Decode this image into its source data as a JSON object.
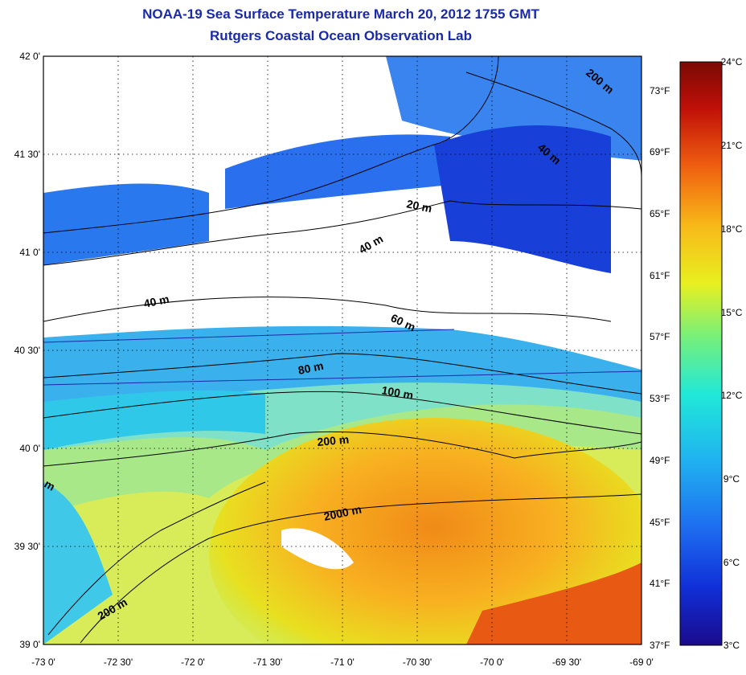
{
  "title_line1": "NOAA-19 Sea Surface Temperature March 20, 2012 1755 GMT",
  "title_line2": "Rutgers Coastal Ocean Observation Lab",
  "map": {
    "lon_range": [
      -73,
      -69
    ],
    "lat_range": [
      39,
      42
    ],
    "lat_ticks": [
      "42 0'",
      "41 30'",
      "41 0'",
      "40 30'",
      "40 0'",
      "39 30'",
      "39 0'"
    ],
    "lon_ticks": [
      "-73 0'",
      "-72 30'",
      "-72 0'",
      "-71 30'",
      "-71 0'",
      "-70 30'",
      "-70 0'",
      "-69 30'",
      "-69 0'"
    ],
    "fahrenheit_ticks": [
      "73°F",
      "69°F",
      "65°F",
      "61°F",
      "57°F",
      "53°F",
      "49°F",
      "45°F",
      "41°F",
      "37°F"
    ],
    "grid": true
  },
  "contours": [
    {
      "label": "20 m"
    },
    {
      "label": "40 m"
    },
    {
      "label": "40 m"
    },
    {
      "label": "40 m"
    },
    {
      "label": "60 m"
    },
    {
      "label": "80 m"
    },
    {
      "label": "100 m"
    },
    {
      "label": "200 m"
    },
    {
      "label": "200 m"
    },
    {
      "label": "200 m"
    },
    {
      "label": "2000 m"
    },
    {
      "label": "m"
    }
  ],
  "colorbar": {
    "celsius_ticks": [
      "24°C",
      "21°C",
      "18°C",
      "15°C",
      "12°C",
      "9°C",
      "6°C",
      "3°C"
    ],
    "range_celsius": [
      3,
      24
    ],
    "colors": [
      "#1a0a8c",
      "#1030d8",
      "#1e6cf0",
      "#20b4f0",
      "#20e8d8",
      "#78f078",
      "#e8f020",
      "#f8b818",
      "#f06010",
      "#c01008",
      "#7a0a04"
    ]
  }
}
